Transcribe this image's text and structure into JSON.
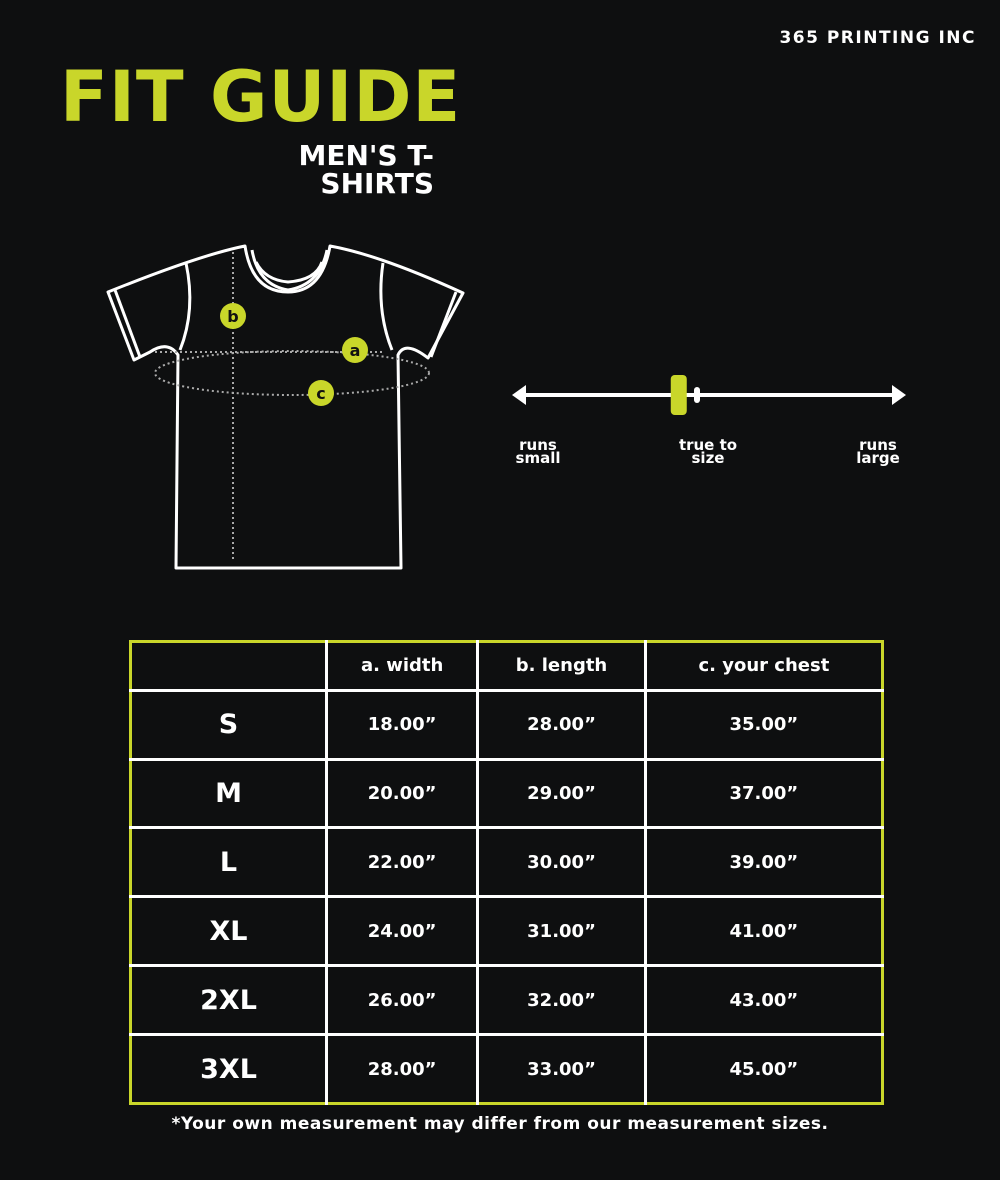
{
  "brand": "365 PRINTING INC",
  "title": "FIT GUIDE",
  "subtitle": "MEN'S T-SHIRTS",
  "colors": {
    "accent": "#c9d62a",
    "background": "#0e0f10",
    "lines": "#ffffff"
  },
  "diagram": {
    "markers": [
      "a",
      "b",
      "c"
    ]
  },
  "fit_scale": {
    "labels": {
      "small": "runs small",
      "true": "true to size",
      "large": "runs large"
    },
    "position": 0.42
  },
  "table": {
    "headers": [
      "",
      "a. width",
      "b. length",
      "c. your chest"
    ],
    "rows": [
      [
        "S",
        "18.00”",
        "28.00”",
        "35.00”"
      ],
      [
        "M",
        "20.00”",
        "29.00”",
        "37.00”"
      ],
      [
        "L",
        "22.00”",
        "30.00”",
        "39.00”"
      ],
      [
        "XL",
        "24.00”",
        "31.00”",
        "41.00”"
      ],
      [
        "2XL",
        "26.00”",
        "32.00”",
        "43.00”"
      ],
      [
        "3XL",
        "28.00”",
        "33.00”",
        "45.00”"
      ]
    ]
  },
  "note": "*Your own measurement may differ from our measurement sizes."
}
